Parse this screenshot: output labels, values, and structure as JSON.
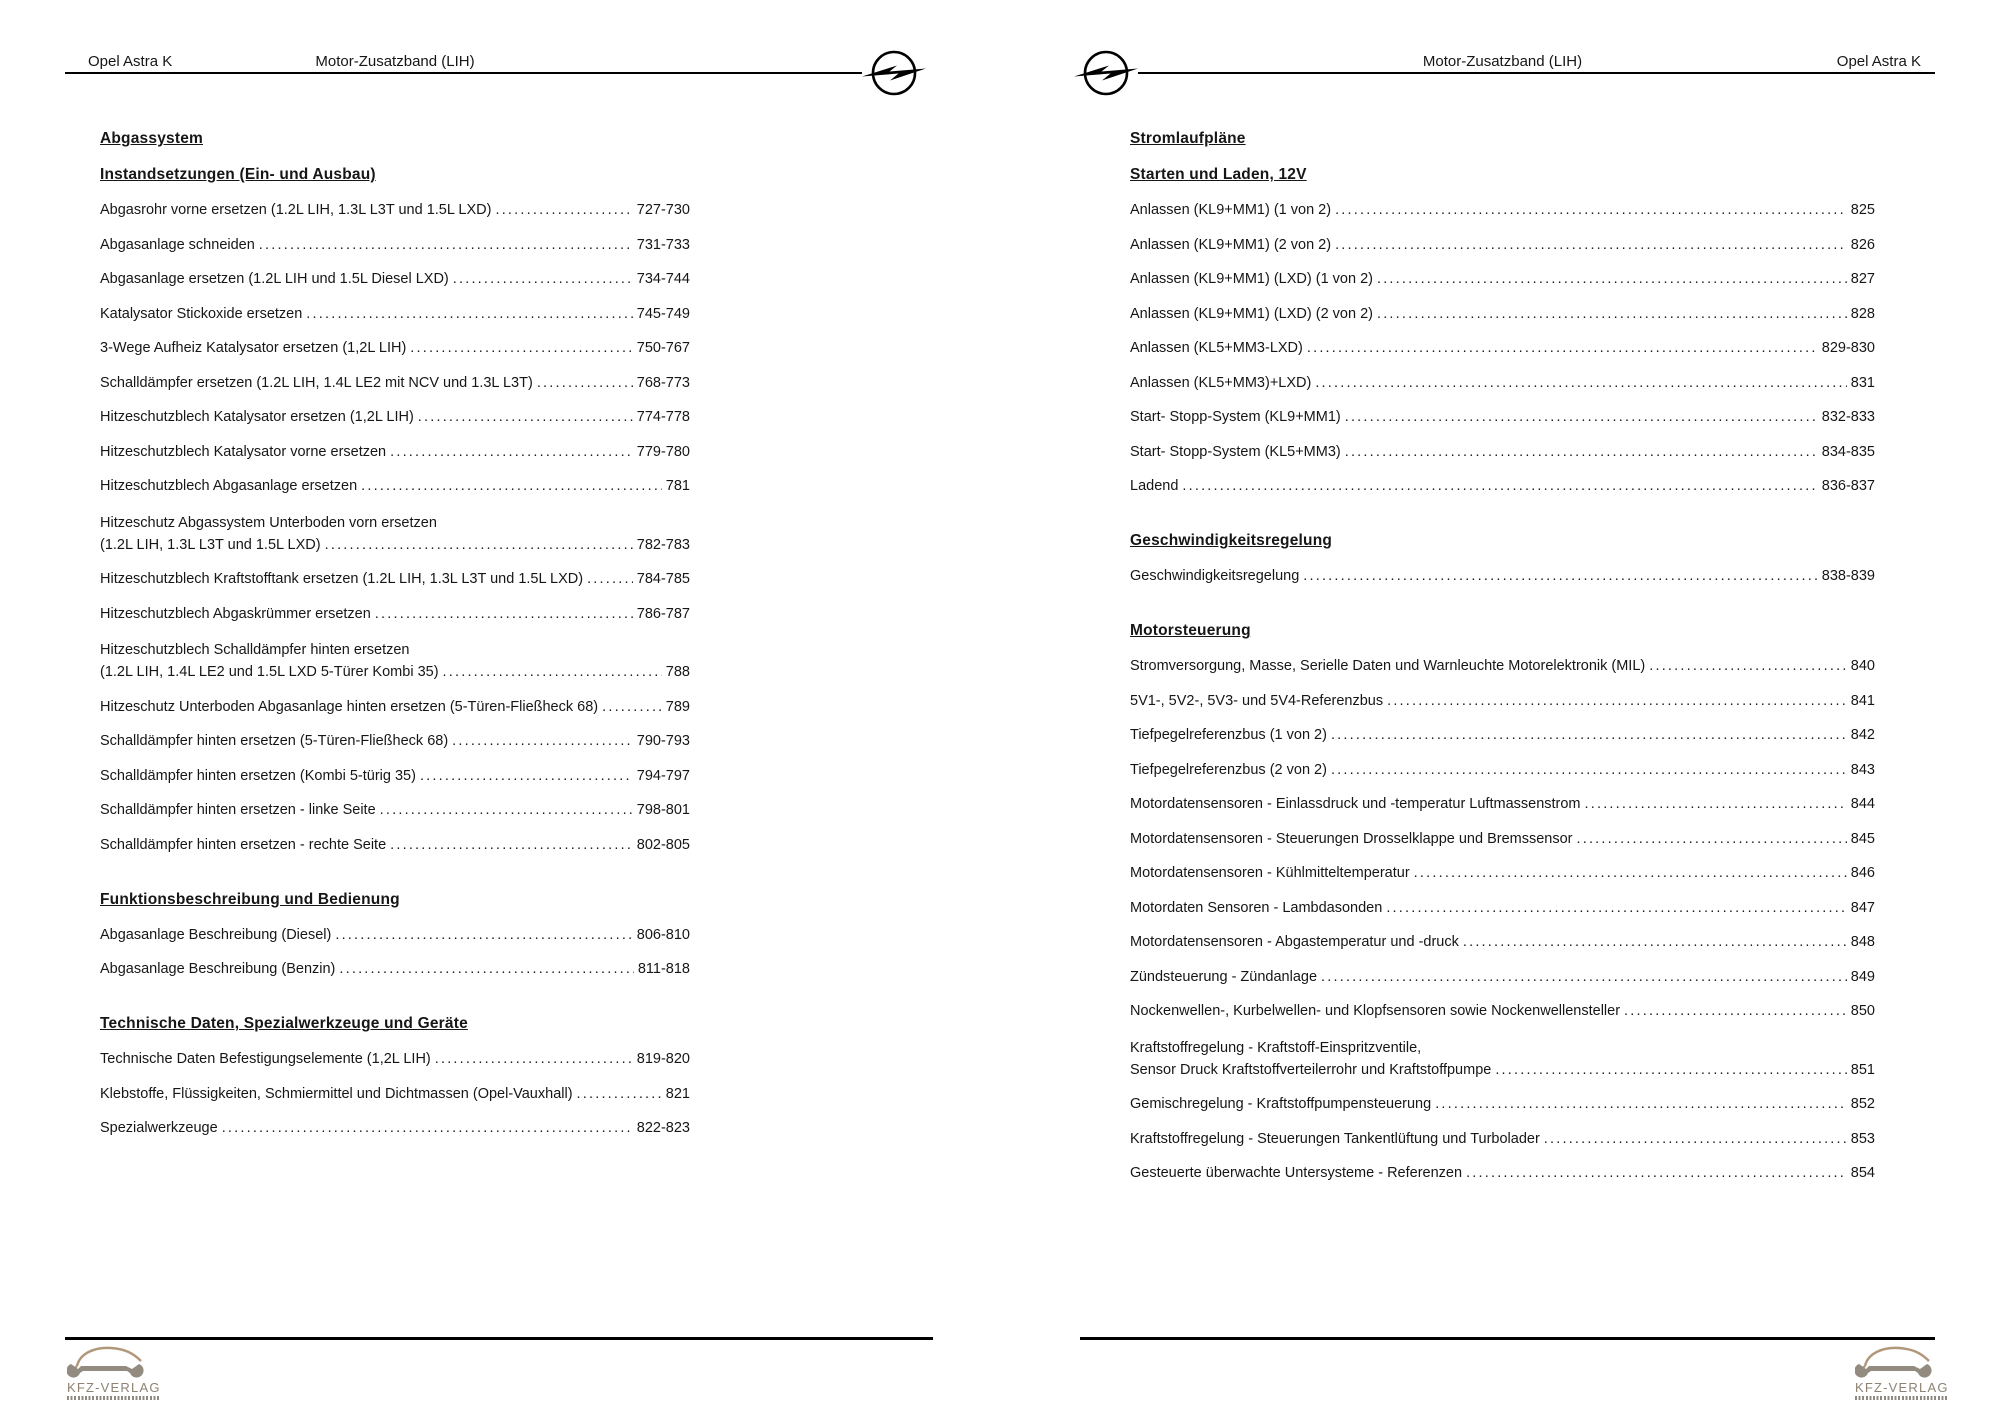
{
  "document": {
    "header_center": "Motor-Zusatzband (LIH)",
    "header_model": "Opel Astra K",
    "publisher": "KFZ-VERLAG"
  },
  "colors": {
    "text": "#161616",
    "rule": "#000000",
    "logo_tan": "#b1977a",
    "logo_gray": "#938b80"
  },
  "icons": {
    "opel_logo": "opel-blitz-icon",
    "publisher_logo": "kfz-verlag-car-wrench-icon"
  },
  "pages": [
    {
      "id": "left",
      "header": {
        "left": "Opel Astra K",
        "center": "Motor-Zusatzband (LIH)"
      },
      "sections": [
        {
          "heading": "Abgassystem",
          "entries": []
        },
        {
          "heading": "Instandsetzungen (Ein- und Ausbau)",
          "entries": [
            {
              "text": "Abgasrohr vorne ersetzen (1.2L LIH, 1.3L L3T und 1.5L LXD)",
              "pages": "727-730"
            },
            {
              "text": "Abgasanlage schneiden",
              "pages": "731-733"
            },
            {
              "text": "Abgasanlage ersetzen (1.2L LIH und 1.5L Diesel LXD)",
              "pages": "734-744"
            },
            {
              "text": "Katalysator Stickoxide ersetzen",
              "pages": "745-749"
            },
            {
              "text": "3-Wege Aufheiz Katalysator ersetzen (1,2L LIH)",
              "pages": "750-767"
            },
            {
              "text": "Schalldämpfer ersetzen (1.2L LIH, 1.4L LE2 mit NCV und 1.3L L3T)",
              "pages": "768-773"
            },
            {
              "text": "Hitzeschutzblech Katalysator ersetzen (1,2L LIH)",
              "pages": "774-778"
            },
            {
              "text": "Hitzeschutzblech Katalysator vorne ersetzen",
              "pages": "779-780"
            },
            {
              "text": "Hitzeschutzblech Abgasanlage ersetzen",
              "pages": "781"
            },
            {
              "pre": "Hitzeschutz Abgassystem Unterboden vorn ersetzen",
              "text": "(1.2L LIH, 1.3L L3T und 1.5L LXD)",
              "pages": "782-783"
            },
            {
              "text": "Hitzeschutzblech Kraftstofftank ersetzen (1.2L LIH, 1.3L L3T und 1.5L LXD)",
              "pages": "784-785"
            },
            {
              "text": "Hitzeschutzblech Abgaskrümmer ersetzen",
              "pages": "786-787"
            },
            {
              "pre": "Hitzeschutzblech Schalldämpfer hinten ersetzen",
              "text": "(1.2L LIH, 1.4L LE2 und 1.5L LXD 5-Türer Kombi 35)",
              "pages": "788"
            },
            {
              "text": "Hitzeschutz Unterboden Abgasanlage hinten ersetzen (5-Türen-Fließheck 68)",
              "pages": "789"
            },
            {
              "text": "Schalldämpfer hinten ersetzen (5-Türen-Fließheck 68)",
              "pages": "790-793"
            },
            {
              "text": "Schalldämpfer hinten ersetzen (Kombi 5-türig 35)",
              "pages": "794-797"
            },
            {
              "text": "Schalldämpfer hinten ersetzen - linke Seite",
              "pages": "798-801"
            },
            {
              "text": "Schalldämpfer hinten ersetzen - rechte Seite",
              "pages": "802-805"
            }
          ]
        },
        {
          "heading": "Funktionsbeschreibung und Bedienung",
          "entries": [
            {
              "text": "Abgasanlage Beschreibung (Diesel)",
              "pages": "806-810"
            },
            {
              "text": "Abgasanlage Beschreibung (Benzin)",
              "pages": "811-818"
            }
          ]
        },
        {
          "heading": "Technische Daten, Spezialwerkzeuge und Geräte",
          "entries": [
            {
              "text": "Technische Daten Befestigungselemente (1,2L LIH)",
              "pages": "819-820"
            },
            {
              "text": "Klebstoffe, Flüssigkeiten, Schmiermittel und Dichtmassen (Opel-Vauxhall)",
              "pages": "821"
            },
            {
              "text": "Spezialwerkzeuge",
              "pages": "822-823"
            }
          ]
        }
      ]
    },
    {
      "id": "right",
      "header": {
        "center": "Motor-Zusatzband (LIH)",
        "right": "Opel Astra K"
      },
      "sections": [
        {
          "heading": "Stromlaufpläne",
          "entries": []
        },
        {
          "heading": "Starten und Laden, 12V",
          "entries": [
            {
              "text": "Anlassen (KL9+MM1) (1 von 2)",
              "pages": "825"
            },
            {
              "text": "Anlassen (KL9+MM1) (2 von 2)",
              "pages": "826"
            },
            {
              "text": "Anlassen (KL9+MM1) (LXD) (1 von 2)",
              "pages": "827"
            },
            {
              "text": "Anlassen (KL9+MM1) (LXD) (2 von 2)",
              "pages": "828"
            },
            {
              "text": "Anlassen (KL5+MM3-LXD)",
              "pages": "829-830"
            },
            {
              "text": "Anlassen (KL5+MM3)+LXD)",
              "pages": "831"
            },
            {
              "text": "Start- Stopp-System (KL9+MM1)",
              "pages": "832-833"
            },
            {
              "text": "Start- Stopp-System (KL5+MM3)",
              "pages": "834-835"
            },
            {
              "text": "Ladend",
              "pages": "836-837"
            }
          ]
        },
        {
          "heading": "Geschwindigkeitsregelung",
          "entries": [
            {
              "text": "Geschwindigkeitsregelung",
              "pages": "838-839"
            }
          ]
        },
        {
          "heading": "Motorsteuerung",
          "entries": [
            {
              "text": "Stromversorgung, Masse, Serielle Daten und Warnleuchte Motorelektronik (MIL)",
              "pages": "840"
            },
            {
              "text": "5V1-, 5V2-, 5V3- und 5V4-Referenzbus",
              "pages": "841"
            },
            {
              "text": "Tiefpegelreferenzbus (1 von 2)",
              "pages": "842"
            },
            {
              "text": "Tiefpegelreferenzbus (2 von 2)",
              "pages": "843"
            },
            {
              "text": "Motordatensensoren - Einlassdruck und -temperatur Luftmassenstrom",
              "pages": "844"
            },
            {
              "text": "Motordatensensoren - Steuerungen Drosselklappe und Bremssensor",
              "pages": "845"
            },
            {
              "text": "Motordatensensoren - Kühlmitteltemperatur",
              "pages": "846"
            },
            {
              "text": "Motordaten Sensoren - Lambdasonden",
              "pages": "847"
            },
            {
              "text": "Motordatensensoren - Abgastemperatur und -druck",
              "pages": "848"
            },
            {
              "text": "Zündsteuerung - Zündanlage",
              "pages": "849"
            },
            {
              "text": "Nockenwellen-, Kurbelwellen- und Klopfsensoren sowie Nockenwellensteller",
              "pages": "850"
            },
            {
              "pre": "Kraftstoffregelung - Kraftstoff-Einspritzventile,",
              "text": "Sensor Druck Kraftstoffverteilerrohr und Kraftstoffpumpe",
              "pages": "851"
            },
            {
              "text": "Gemischregelung - Kraftstoffpumpensteuerung",
              "pages": "852"
            },
            {
              "text": "Kraftstoffregelung - Steuerungen Tankentlüftung und Turbolader",
              "pages": "853"
            },
            {
              "text": "Gesteuerte überwachte Untersysteme - Referenzen",
              "pages": "854"
            }
          ]
        }
      ]
    }
  ],
  "footer": {
    "publisher": "KFZ-VERLAG"
  }
}
